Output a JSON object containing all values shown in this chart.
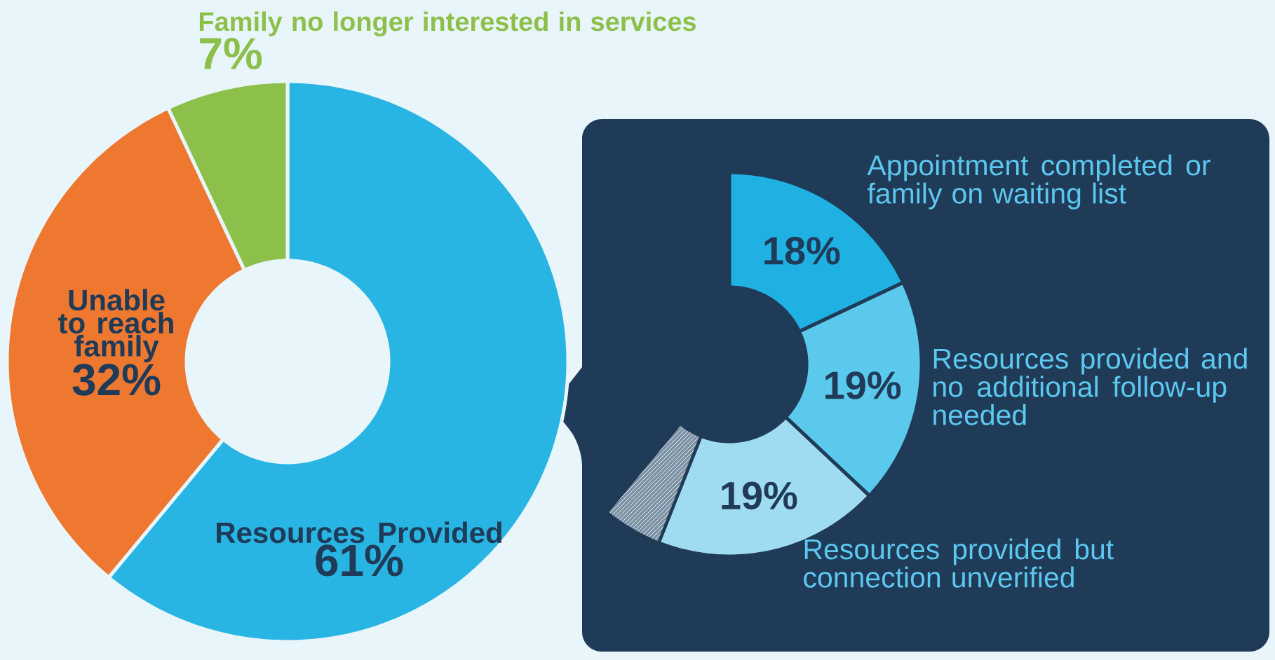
{
  "chart_data": [
    {
      "type": "donut",
      "categories": [
        "Resources Provided",
        "Unable to reach family",
        "Family no longer interested in services"
      ],
      "values": [
        61,
        32,
        7
      ],
      "colors": [
        "#29b5e4",
        "#ef7831",
        "#8dc04a"
      ],
      "value_labels": [
        "61%",
        "32%",
        "7%"
      ]
    },
    {
      "type": "donut",
      "categories": [
        "Appointment completed or family on waiting list",
        "Resources provided and no additional follow-up needed",
        "Resources provided but connection unverified",
        null
      ],
      "values": [
        18,
        19,
        19,
        5
      ],
      "colors": [
        "#1eb1e2",
        "#5bc9ec",
        "#9fdcf2",
        "#7d92a5"
      ],
      "value_labels": [
        "18%",
        "19%",
        "19%",
        null
      ]
    }
  ]
}
